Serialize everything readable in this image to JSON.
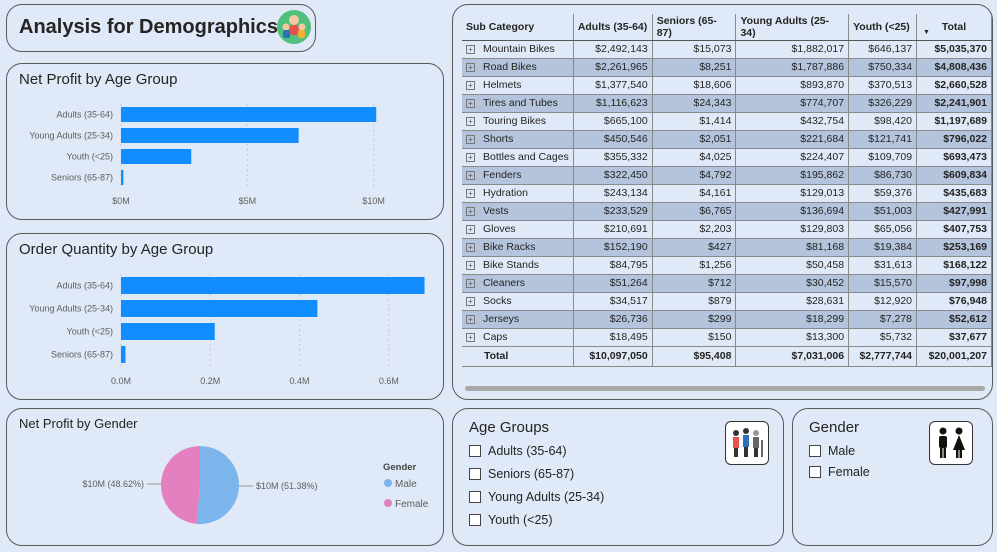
{
  "title": "Analysis for Demographics",
  "colors": {
    "bar": "#118dff",
    "male": "#7cb5ec",
    "female": "#e580c0",
    "grid": "#c8c8c8"
  },
  "profit_chart": {
    "title": "Net Profit by Age Group",
    "chart_data": {
      "type": "bar",
      "orientation": "horizontal",
      "categories": [
        "Adults (35-64)",
        "Young Adults (25-34)",
        "Youth (<25)",
        "Seniors (65-87)"
      ],
      "values": [
        10.1,
        7.03,
        2.78,
        0.095
      ],
      "ticks": [
        "$0M",
        "$5M",
        "$10M"
      ],
      "xlim": [
        0,
        11.2
      ]
    }
  },
  "order_chart": {
    "title": "Order Quantity by Age Group",
    "chart_data": {
      "type": "bar",
      "orientation": "horizontal",
      "categories": [
        "Adults (35-64)",
        "Young Adults (25-34)",
        "Youth (<25)",
        "Seniors (65-87)"
      ],
      "values": [
        0.68,
        0.44,
        0.21,
        0.01
      ],
      "ticks": [
        "0.0M",
        "0.2M",
        "0.4M",
        "0.6M"
      ],
      "xlim": [
        0,
        0.69
      ]
    }
  },
  "gender_chart": {
    "title": "Net Profit by Gender",
    "chart_data": {
      "type": "pie",
      "slices": [
        {
          "name": "Male",
          "value": 51.38,
          "label": "$10M (51.38%)"
        },
        {
          "name": "Female",
          "value": 48.62,
          "label": "$10M (48.62%)"
        }
      ],
      "legend_title": "Gender"
    }
  },
  "table": {
    "headers": [
      "Sub Category",
      "Adults (35-64)",
      "Seniors (65-87)",
      "Young Adults (25-34)",
      "Youth (<25)",
      "Total"
    ],
    "rows": [
      [
        "Mountain Bikes",
        "$2,492,143",
        "$15,073",
        "$1,882,017",
        "$646,137",
        "$5,035,370"
      ],
      [
        "Road Bikes",
        "$2,261,965",
        "$8,251",
        "$1,787,886",
        "$750,334",
        "$4,808,436"
      ],
      [
        "Helmets",
        "$1,377,540",
        "$18,606",
        "$893,870",
        "$370,513",
        "$2,660,528"
      ],
      [
        "Tires and Tubes",
        "$1,116,623",
        "$24,343",
        "$774,707",
        "$326,229",
        "$2,241,901"
      ],
      [
        "Touring Bikes",
        "$665,100",
        "$1,414",
        "$432,754",
        "$98,420",
        "$1,197,689"
      ],
      [
        "Shorts",
        "$450,546",
        "$2,051",
        "$221,684",
        "$121,741",
        "$796,022"
      ],
      [
        "Bottles and Cages",
        "$355,332",
        "$4,025",
        "$224,407",
        "$109,709",
        "$693,473"
      ],
      [
        "Fenders",
        "$322,450",
        "$4,792",
        "$195,862",
        "$86,730",
        "$609,834"
      ],
      [
        "Hydration",
        "$243,134",
        "$4,161",
        "$129,013",
        "$59,376",
        "$435,683"
      ],
      [
        "Vests",
        "$233,529",
        "$6,765",
        "$136,694",
        "$51,003",
        "$427,991"
      ],
      [
        "Gloves",
        "$210,691",
        "$2,203",
        "$129,803",
        "$65,056",
        "$407,753"
      ],
      [
        "Bike Racks",
        "$152,190",
        "$427",
        "$81,168",
        "$19,384",
        "$253,169"
      ],
      [
        "Bike Stands",
        "$84,795",
        "$1,256",
        "$50,458",
        "$31,613",
        "$168,122"
      ],
      [
        "Cleaners",
        "$51,264",
        "$712",
        "$30,452",
        "$15,570",
        "$97,998"
      ],
      [
        "Socks",
        "$34,517",
        "$879",
        "$28,631",
        "$12,920",
        "$76,948"
      ],
      [
        "Jerseys",
        "$26,736",
        "$299",
        "$18,299",
        "$7,278",
        "$52,612"
      ],
      [
        "Caps",
        "$18,495",
        "$150",
        "$13,300",
        "$5,732",
        "$37,677"
      ]
    ],
    "total": [
      "Total",
      "$10,097,050",
      "$95,408",
      "$7,031,006",
      "$2,777,744",
      "$20,001,207"
    ]
  },
  "age_slicer": {
    "title": "Age Groups",
    "options": [
      "Adults (35-64)",
      "Seniors (65-87)",
      "Young Adults (25-34)",
      "Youth (<25)"
    ],
    "icon": "people-age-icon"
  },
  "gender_slicer": {
    "title": "Gender",
    "options": [
      "Male",
      "Female"
    ],
    "icon": "male-female-icon"
  }
}
